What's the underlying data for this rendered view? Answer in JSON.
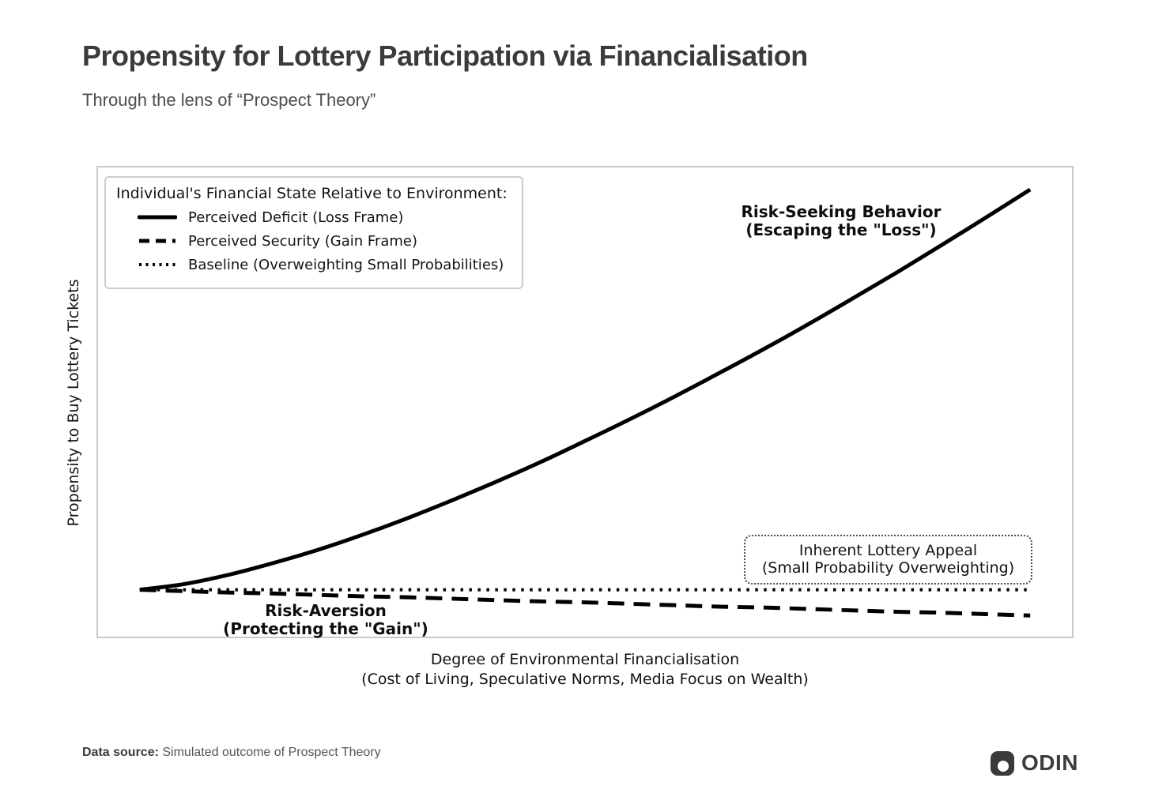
{
  "header": {
    "title": "Propensity for Lottery Participation via Financialisation",
    "subtitle": "Through the lens of “Prospect Theory”"
  },
  "chart": {
    "y_axis_label": "Propensity to Buy Lottery Tickets",
    "x_axis_label_line1": "Degree of Environmental Financialisation",
    "x_axis_label_line2": "(Cost of Living, Speculative Norms, Media Focus on Wealth)",
    "legend": {
      "title": "Individual's Financial State Relative to Environment:"
    },
    "annotations": {
      "risk_seeking": {
        "line1": "Risk-Seeking Behavior",
        "line2": "(Escaping the \"Loss\")"
      },
      "lottery_appeal": {
        "line1": "Inherent Lottery Appeal",
        "line2": "(Small Probability Overweighting)"
      },
      "risk_aversion": {
        "line1": "Risk-Aversion",
        "line2": "(Protecting the \"Gain\")"
      }
    },
    "colors": {
      "line": "#000000",
      "plot_border": "#c9c9c9"
    }
  },
  "chart_data": {
    "type": "line",
    "title": "Propensity for Lottery Participation via Financialisation",
    "xlabel": "Degree of Environmental Financialisation (Cost of Living, Speculative Norms, Media Focus on Wealth)",
    "ylabel": "Propensity to Buy Lottery Tickets",
    "xlim": [
      0,
      1
    ],
    "ylim": [
      0,
      1
    ],
    "grid": false,
    "legend_position": "upper left",
    "x": [
      0,
      0.05,
      0.1,
      0.15,
      0.2,
      0.25,
      0.3,
      0.35,
      0.4,
      0.45,
      0.5,
      0.55,
      0.6,
      0.65,
      0.7,
      0.75,
      0.8,
      0.85,
      0.9,
      0.95,
      1.0
    ],
    "series": [
      {
        "name": "Perceived Deficit (Loss Frame)",
        "style": "solid",
        "values": [
          0.1,
          0.112,
          0.132,
          0.157,
          0.185,
          0.217,
          0.252,
          0.29,
          0.33,
          0.372,
          0.417,
          0.463,
          0.511,
          0.561,
          0.612,
          0.665,
          0.72,
          0.776,
          0.834,
          0.893,
          0.953
        ]
      },
      {
        "name": "Perceived Security (Gain Frame)",
        "style": "dashed",
        "values": [
          0.1,
          0.097,
          0.094,
          0.092,
          0.089,
          0.086,
          0.084,
          0.081,
          0.078,
          0.075,
          0.073,
          0.07,
          0.067,
          0.064,
          0.062,
          0.059,
          0.056,
          0.053,
          0.051,
          0.048,
          0.045
        ]
      },
      {
        "name": "Baseline (Overweighting Small Probabilities)",
        "style": "dotted",
        "values": [
          0.1,
          0.1,
          0.1,
          0.1,
          0.1,
          0.1,
          0.1,
          0.1,
          0.1,
          0.1,
          0.1,
          0.1,
          0.1,
          0.1,
          0.1,
          0.1,
          0.1,
          0.1,
          0.1,
          0.1,
          0.1
        ]
      }
    ]
  },
  "footer": {
    "source_label": "Data source:",
    "source_value": " Simulated outcome of Prospect Theory",
    "brand": "ODIN"
  }
}
